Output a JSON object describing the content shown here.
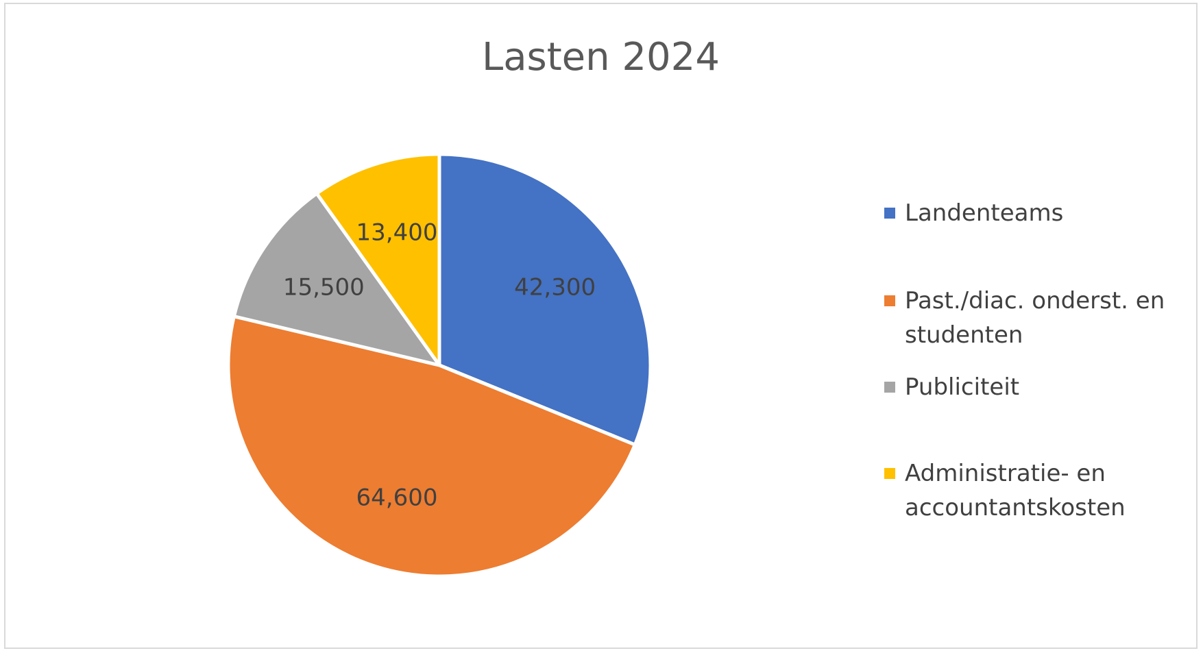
{
  "chart_data": {
    "type": "pie",
    "title": "Lasten 2024",
    "categories": [
      "Landenteams",
      "Past./diac. onderst. en studenten",
      "Publiciteit",
      "Administratie- en accountantskosten"
    ],
    "values": [
      42300,
      64600,
      15500,
      13400
    ],
    "data_labels": [
      "42,300",
      "64,600",
      "15,500",
      "13,400"
    ],
    "colors": [
      "#4472C4",
      "#ED7D31",
      "#A5A5A5",
      "#FFC000"
    ],
    "legend": "right",
    "start_angle": "12 o'clock",
    "direction": "clockwise"
  }
}
